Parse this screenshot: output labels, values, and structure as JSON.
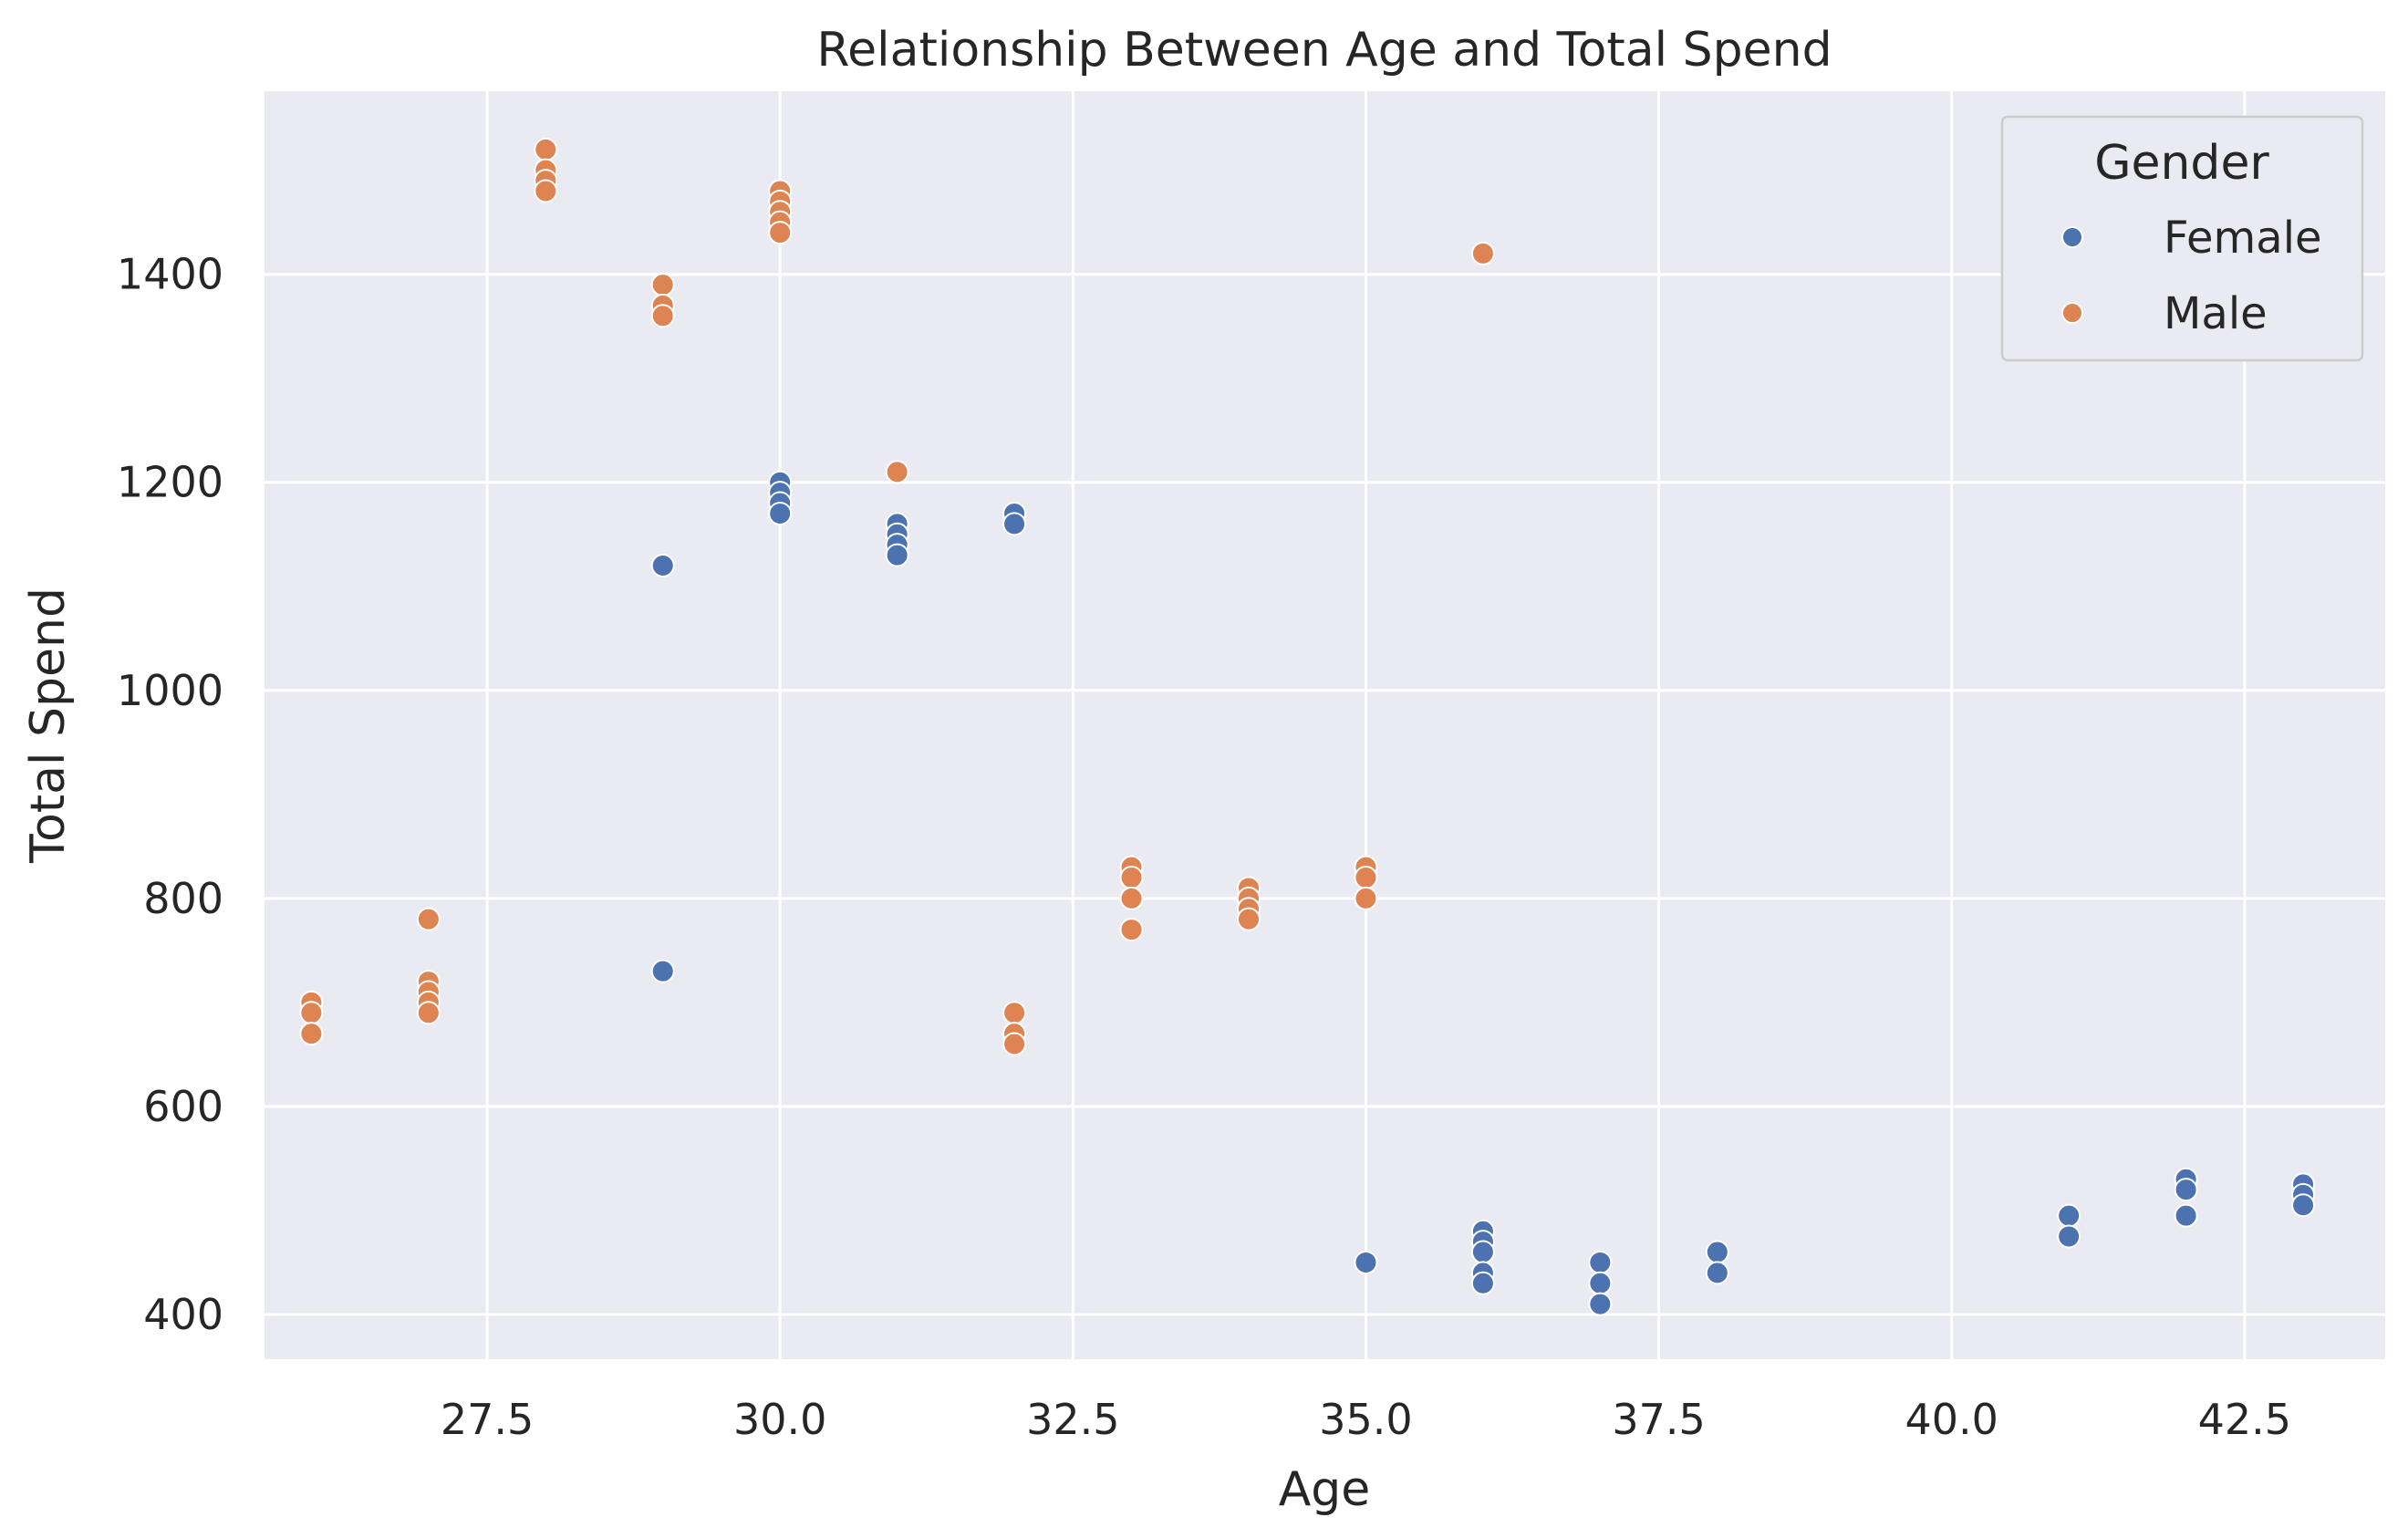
{
  "chart_data": {
    "type": "scatter",
    "title": "Relationship Between Age and Total Spend",
    "xlabel": "Age",
    "ylabel": "Total Spend",
    "xlim": [
      25.6,
      43.7
    ],
    "ylim": [
      357,
      1576
    ],
    "xticks": [
      27.5,
      30.0,
      32.5,
      35.0,
      37.5,
      40.0,
      42.5
    ],
    "xtick_labels": [
      "27.5",
      "30.0",
      "32.5",
      "35.0",
      "37.5",
      "40.0",
      "42.5"
    ],
    "yticks": [
      400,
      600,
      800,
      1000,
      1200,
      1400
    ],
    "ytick_labels": [
      "400",
      "600",
      "800",
      "1000",
      "1200",
      "1400"
    ],
    "grid": true,
    "legend": {
      "title": "Gender",
      "placement": "top-right"
    },
    "series": [
      {
        "name": "Female",
        "color": "#4c72b0",
        "points": [
          [
            29,
            1120
          ],
          [
            29,
            730
          ],
          [
            30,
            1200
          ],
          [
            30,
            1190
          ],
          [
            30,
            1180
          ],
          [
            30,
            1170
          ],
          [
            31,
            1160
          ],
          [
            31,
            1150
          ],
          [
            31,
            1140
          ],
          [
            31,
            1130
          ],
          [
            32,
            1170
          ],
          [
            32,
            1160
          ],
          [
            35,
            450
          ],
          [
            36,
            480
          ],
          [
            36,
            470
          ],
          [
            36,
            460
          ],
          [
            36,
            440
          ],
          [
            36,
            430
          ],
          [
            37,
            450
          ],
          [
            37,
            430
          ],
          [
            37,
            410
          ],
          [
            38,
            460
          ],
          [
            38,
            440
          ],
          [
            41,
            495
          ],
          [
            41,
            475
          ],
          [
            42,
            530
          ],
          [
            42,
            520
          ],
          [
            42,
            495
          ],
          [
            43,
            525
          ],
          [
            43,
            515
          ],
          [
            43,
            505
          ]
        ]
      },
      {
        "name": "Male",
        "color": "#dd8452",
        "points": [
          [
            26,
            700
          ],
          [
            26,
            690
          ],
          [
            26,
            670
          ],
          [
            27,
            780
          ],
          [
            27,
            720
          ],
          [
            27,
            710
          ],
          [
            27,
            700
          ],
          [
            27,
            690
          ],
          [
            28,
            1520
          ],
          [
            28,
            1500
          ],
          [
            28,
            1490
          ],
          [
            28,
            1480
          ],
          [
            29,
            1390
          ],
          [
            29,
            1370
          ],
          [
            29,
            1360
          ],
          [
            30,
            1480
          ],
          [
            30,
            1470
          ],
          [
            30,
            1460
          ],
          [
            30,
            1450
          ],
          [
            30,
            1440
          ],
          [
            31,
            1210
          ],
          [
            32,
            690
          ],
          [
            32,
            670
          ],
          [
            32,
            660
          ],
          [
            33,
            830
          ],
          [
            33,
            820
          ],
          [
            33,
            800
          ],
          [
            33,
            770
          ],
          [
            34,
            810
          ],
          [
            34,
            800
          ],
          [
            34,
            790
          ],
          [
            34,
            780
          ],
          [
            35,
            830
          ],
          [
            35,
            820
          ],
          [
            35,
            800
          ],
          [
            36,
            1420
          ]
        ]
      }
    ]
  }
}
